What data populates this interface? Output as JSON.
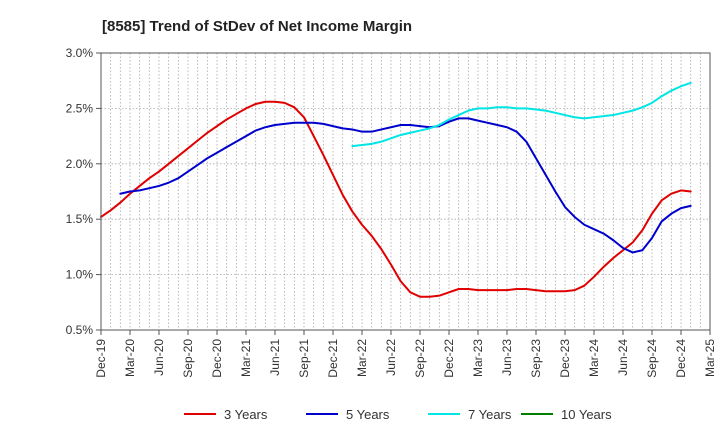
{
  "chart_data": {
    "type": "line",
    "title": "[8585]  Trend of StDev of Net Income Margin",
    "xlabel": "",
    "ylabel": "",
    "x_ticks": [
      "Dec-19",
      "Mar-20",
      "Jun-20",
      "Sep-20",
      "Dec-20",
      "Mar-21",
      "Jun-21",
      "Sep-21",
      "Dec-21",
      "Mar-22",
      "Jun-22",
      "Sep-22",
      "Dec-22",
      "Mar-23",
      "Jun-23",
      "Sep-23",
      "Dec-23",
      "Mar-24",
      "Jun-24",
      "Sep-24",
      "Dec-24",
      "Mar-25"
    ],
    "y_ticks": [
      "0.5%",
      "1.0%",
      "1.5%",
      "2.0%",
      "2.5%",
      "3.0%"
    ],
    "ylim": [
      0.5,
      3.0
    ],
    "grid": true,
    "legend_position": "bottom",
    "series": [
      {
        "name": "3 Years",
        "color": "#e00000",
        "values": [
          [
            "Dec-19",
            1.52
          ],
          [
            "Jan-20",
            1.58
          ],
          [
            "Feb-20",
            1.65
          ],
          [
            "Mar-20",
            1.73
          ],
          [
            "Apr-20",
            1.8
          ],
          [
            "May-20",
            1.87
          ],
          [
            "Jun-20",
            1.93
          ],
          [
            "Jul-20",
            2.0
          ],
          [
            "Aug-20",
            2.07
          ],
          [
            "Sep-20",
            2.14
          ],
          [
            "Oct-20",
            2.21
          ],
          [
            "Nov-20",
            2.28
          ],
          [
            "Dec-20",
            2.34
          ],
          [
            "Jan-21",
            2.4
          ],
          [
            "Feb-21",
            2.45
          ],
          [
            "Mar-21",
            2.5
          ],
          [
            "Apr-21",
            2.54
          ],
          [
            "May-21",
            2.56
          ],
          [
            "Jun-21",
            2.56
          ],
          [
            "Jul-21",
            2.55
          ],
          [
            "Aug-21",
            2.51
          ],
          [
            "Sep-21",
            2.42
          ],
          [
            "Oct-21",
            2.25
          ],
          [
            "Nov-21",
            2.08
          ],
          [
            "Dec-21",
            1.9
          ],
          [
            "Jan-22",
            1.72
          ],
          [
            "Feb-22",
            1.57
          ],
          [
            "Mar-22",
            1.45
          ],
          [
            "Apr-22",
            1.35
          ],
          [
            "May-22",
            1.23
          ],
          [
            "Jun-22",
            1.09
          ],
          [
            "Jul-22",
            0.94
          ],
          [
            "Aug-22",
            0.84
          ],
          [
            "Sep-22",
            0.8
          ],
          [
            "Oct-22",
            0.8
          ],
          [
            "Nov-22",
            0.81
          ],
          [
            "Dec-22",
            0.84
          ],
          [
            "Jan-23",
            0.87
          ],
          [
            "Feb-23",
            0.87
          ],
          [
            "Mar-23",
            0.86
          ],
          [
            "Apr-23",
            0.86
          ],
          [
            "May-23",
            0.86
          ],
          [
            "Jun-23",
            0.86
          ],
          [
            "Jul-23",
            0.87
          ],
          [
            "Aug-23",
            0.87
          ],
          [
            "Sep-23",
            0.86
          ],
          [
            "Oct-23",
            0.85
          ],
          [
            "Nov-23",
            0.85
          ],
          [
            "Dec-23",
            0.85
          ],
          [
            "Jan-24",
            0.86
          ],
          [
            "Feb-24",
            0.9
          ],
          [
            "Mar-24",
            0.98
          ],
          [
            "Apr-24",
            1.07
          ],
          [
            "May-24",
            1.15
          ],
          [
            "Jun-24",
            1.22
          ],
          [
            "Jul-24",
            1.29
          ],
          [
            "Aug-24",
            1.4
          ],
          [
            "Sep-24",
            1.55
          ],
          [
            "Oct-24",
            1.67
          ],
          [
            "Nov-24",
            1.73
          ],
          [
            "Dec-24",
            1.76
          ],
          [
            "Jan-25",
            1.75
          ]
        ]
      },
      {
        "name": "5 Years",
        "color": "#0000cc",
        "values": [
          [
            "Feb-20",
            1.73
          ],
          [
            "Mar-20",
            1.75
          ],
          [
            "Apr-20",
            1.76
          ],
          [
            "May-20",
            1.78
          ],
          [
            "Jun-20",
            1.8
          ],
          [
            "Jul-20",
            1.83
          ],
          [
            "Aug-20",
            1.87
          ],
          [
            "Sep-20",
            1.93
          ],
          [
            "Oct-20",
            1.99
          ],
          [
            "Nov-20",
            2.05
          ],
          [
            "Dec-20",
            2.1
          ],
          [
            "Jan-21",
            2.15
          ],
          [
            "Feb-21",
            2.2
          ],
          [
            "Mar-21",
            2.25
          ],
          [
            "Apr-21",
            2.3
          ],
          [
            "May-21",
            2.33
          ],
          [
            "Jun-21",
            2.35
          ],
          [
            "Jul-21",
            2.36
          ],
          [
            "Aug-21",
            2.37
          ],
          [
            "Sep-21",
            2.37
          ],
          [
            "Oct-21",
            2.37
          ],
          [
            "Nov-21",
            2.36
          ],
          [
            "Dec-21",
            2.34
          ],
          [
            "Jan-22",
            2.32
          ],
          [
            "Feb-22",
            2.31
          ],
          [
            "Mar-22",
            2.29
          ],
          [
            "Apr-22",
            2.29
          ],
          [
            "May-22",
            2.31
          ],
          [
            "Jun-22",
            2.33
          ],
          [
            "Jul-22",
            2.35
          ],
          [
            "Aug-22",
            2.35
          ],
          [
            "Sep-22",
            2.34
          ],
          [
            "Oct-22",
            2.33
          ],
          [
            "Nov-22",
            2.34
          ],
          [
            "Dec-22",
            2.38
          ],
          [
            "Jan-23",
            2.41
          ],
          [
            "Feb-23",
            2.41
          ],
          [
            "Mar-23",
            2.39
          ],
          [
            "Apr-23",
            2.37
          ],
          [
            "May-23",
            2.35
          ],
          [
            "Jun-23",
            2.33
          ],
          [
            "Jul-23",
            2.29
          ],
          [
            "Aug-23",
            2.2
          ],
          [
            "Sep-23",
            2.05
          ],
          [
            "Oct-23",
            1.9
          ],
          [
            "Nov-23",
            1.75
          ],
          [
            "Dec-23",
            1.61
          ],
          [
            "Jan-24",
            1.52
          ],
          [
            "Feb-24",
            1.45
          ],
          [
            "Mar-24",
            1.41
          ],
          [
            "Apr-24",
            1.37
          ],
          [
            "May-24",
            1.31
          ],
          [
            "Jun-24",
            1.24
          ],
          [
            "Jul-24",
            1.2
          ],
          [
            "Aug-24",
            1.22
          ],
          [
            "Sep-24",
            1.33
          ],
          [
            "Oct-24",
            1.48
          ],
          [
            "Nov-24",
            1.55
          ],
          [
            "Dec-24",
            1.6
          ],
          [
            "Jan-25",
            1.62
          ]
        ]
      },
      {
        "name": "7 Years",
        "color": "#00e5e5",
        "values": [
          [
            "Feb-22",
            2.16
          ],
          [
            "Mar-22",
            2.17
          ],
          [
            "Apr-22",
            2.18
          ],
          [
            "May-22",
            2.2
          ],
          [
            "Jun-22",
            2.23
          ],
          [
            "Jul-22",
            2.26
          ],
          [
            "Aug-22",
            2.28
          ],
          [
            "Sep-22",
            2.3
          ],
          [
            "Oct-22",
            2.32
          ],
          [
            "Nov-22",
            2.35
          ],
          [
            "Dec-22",
            2.4
          ],
          [
            "Jan-23",
            2.44
          ],
          [
            "Feb-23",
            2.48
          ],
          [
            "Mar-23",
            2.5
          ],
          [
            "Apr-23",
            2.5
          ],
          [
            "May-23",
            2.51
          ],
          [
            "Jun-23",
            2.51
          ],
          [
            "Jul-23",
            2.5
          ],
          [
            "Aug-23",
            2.5
          ],
          [
            "Sep-23",
            2.49
          ],
          [
            "Oct-23",
            2.48
          ],
          [
            "Nov-23",
            2.46
          ],
          [
            "Dec-23",
            2.44
          ],
          [
            "Jan-24",
            2.42
          ],
          [
            "Feb-24",
            2.41
          ],
          [
            "Mar-24",
            2.42
          ],
          [
            "Apr-24",
            2.43
          ],
          [
            "May-24",
            2.44
          ],
          [
            "Jun-24",
            2.46
          ],
          [
            "Jul-24",
            2.48
          ],
          [
            "Aug-24",
            2.51
          ],
          [
            "Sep-24",
            2.55
          ],
          [
            "Oct-24",
            2.61
          ],
          [
            "Nov-24",
            2.66
          ],
          [
            "Dec-24",
            2.7
          ],
          [
            "Jan-25",
            2.73
          ]
        ]
      },
      {
        "name": "10 Years",
        "color": "#008000",
        "values": []
      }
    ]
  }
}
